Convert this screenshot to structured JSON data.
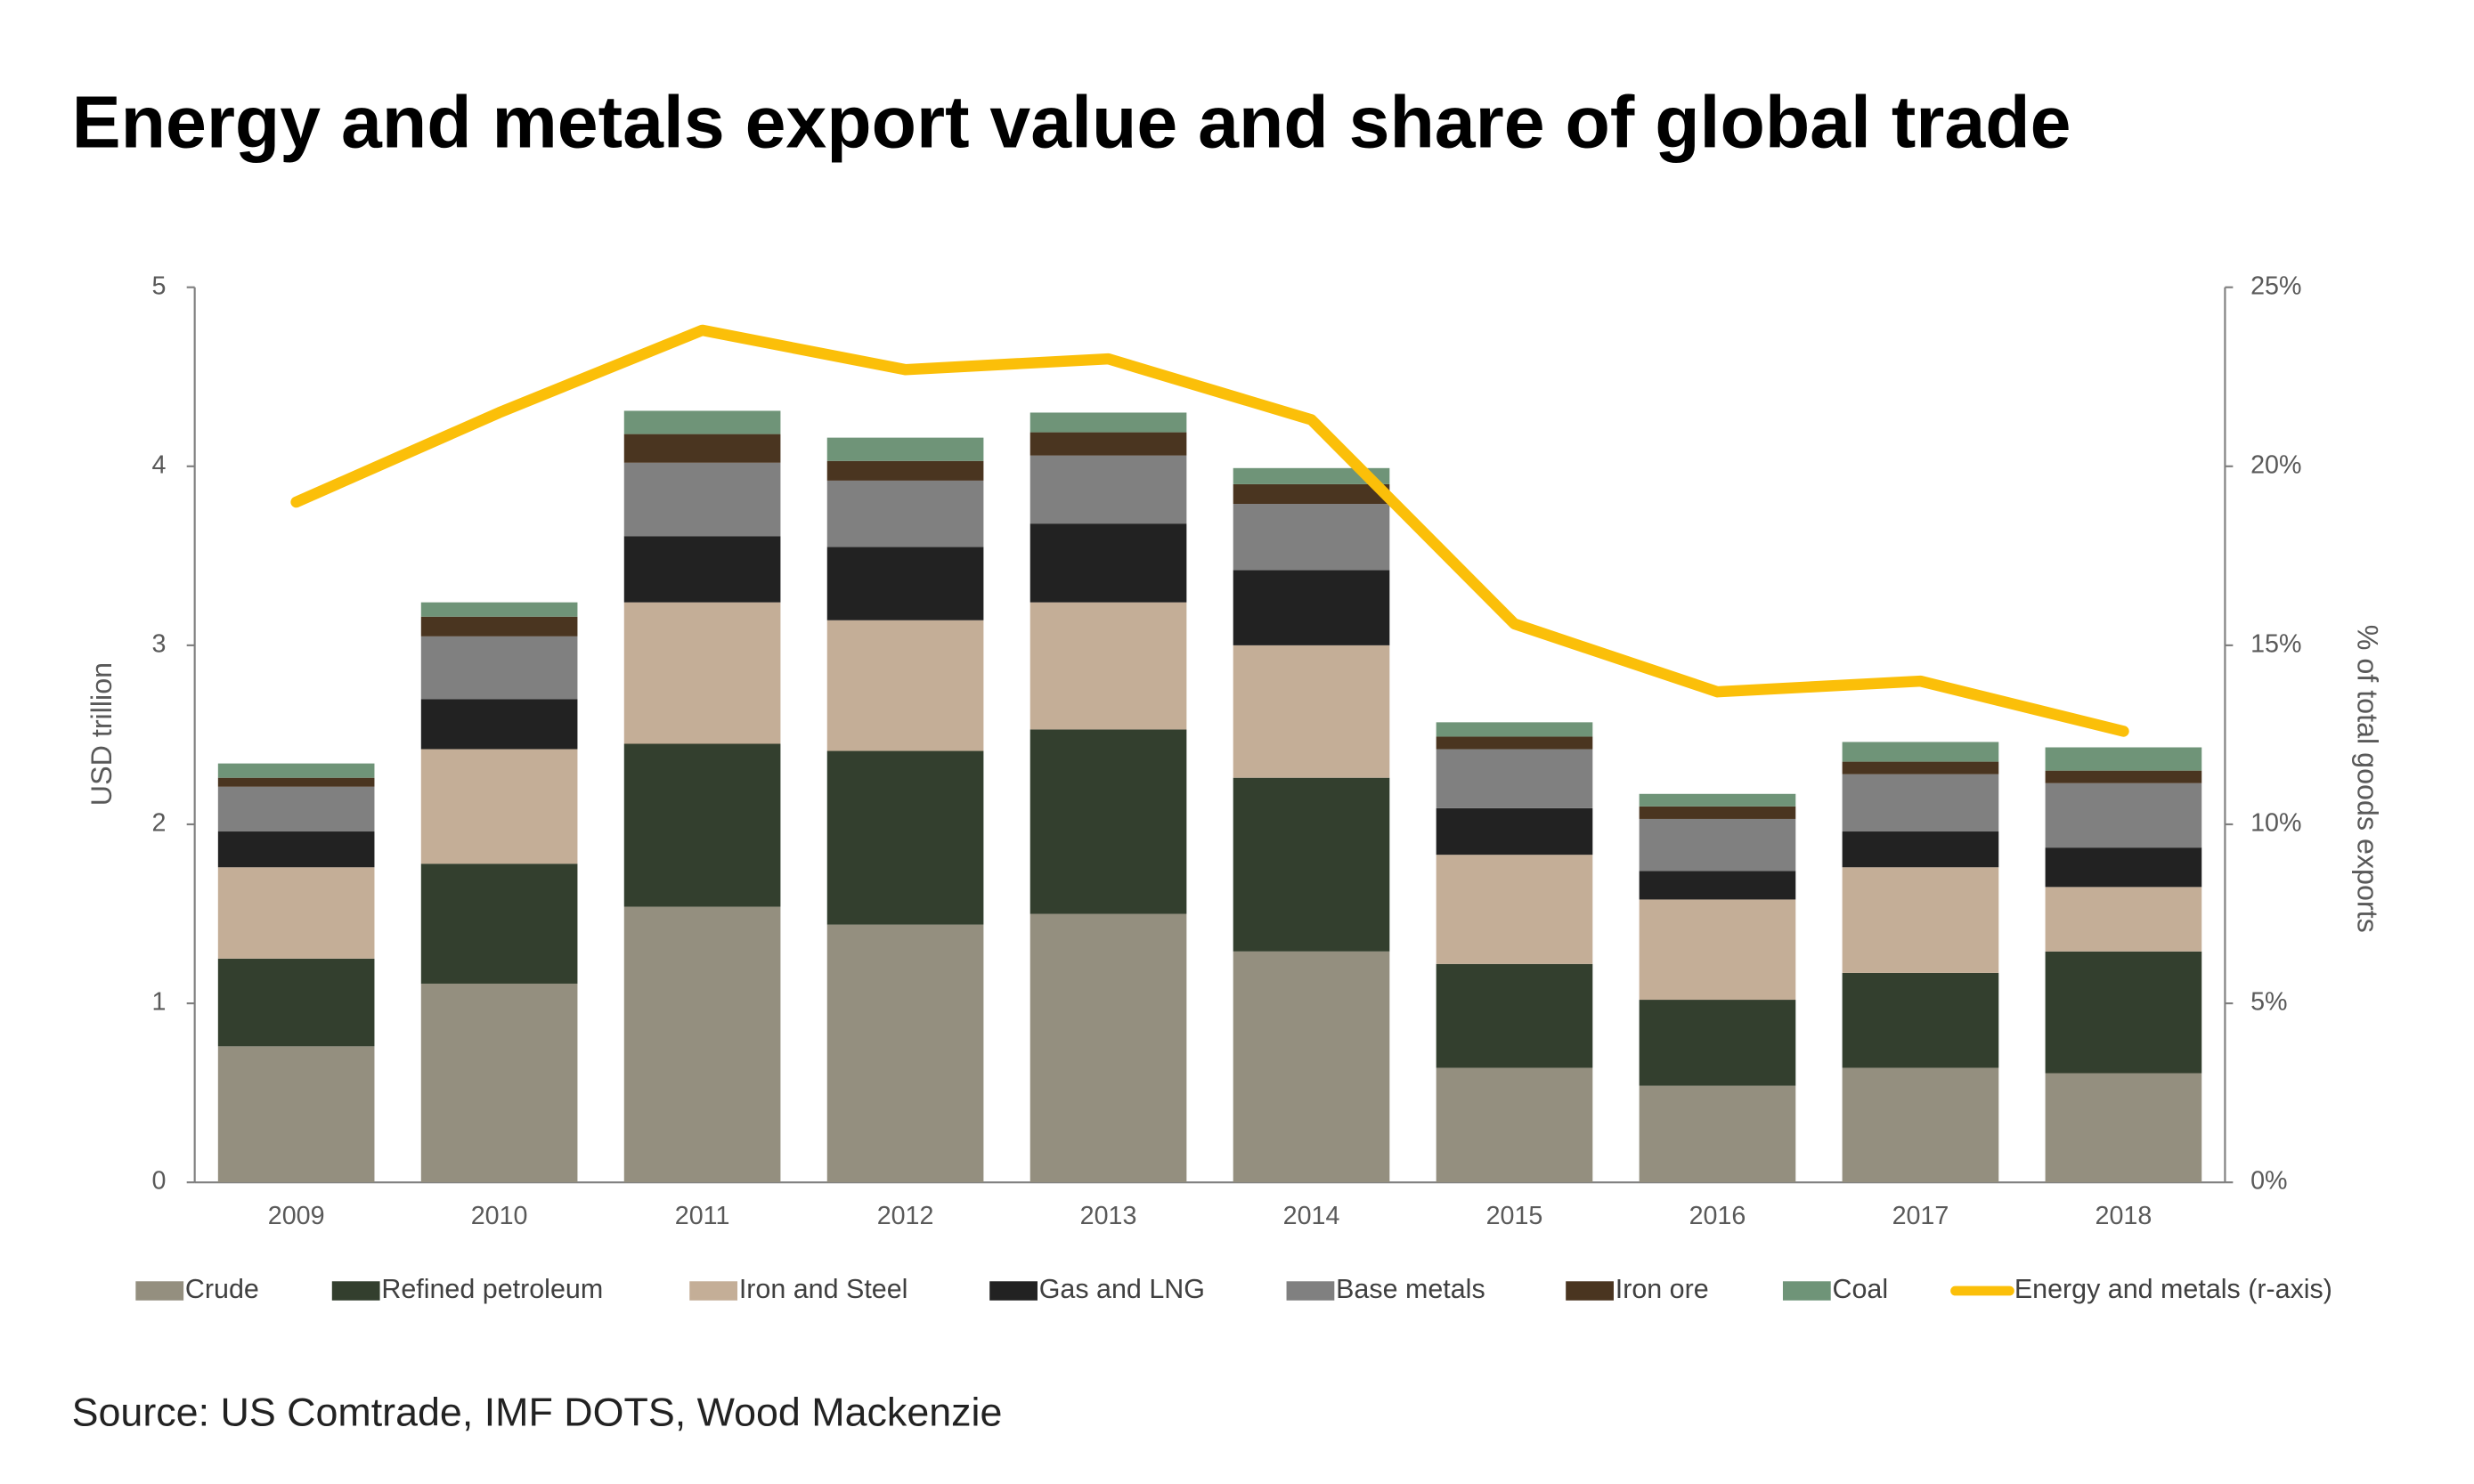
{
  "chart_data": {
    "type": "bar",
    "stacked": true,
    "title": "Energy and metals export value and share of global trade",
    "source": "Source: US Comtrade, IMF DOTS, Wood Mackenzie",
    "y_label": "USD trillion",
    "y2_label": "% of total goods exports",
    "categories": [
      "2009",
      "2010",
      "2011",
      "2012",
      "2013",
      "2014",
      "2015",
      "2016",
      "2017",
      "2018"
    ],
    "ylim": [
      0,
      5
    ],
    "yticks": [
      0,
      1,
      2,
      3,
      4,
      5
    ],
    "y2lim": [
      0,
      25
    ],
    "y2ticks": [
      {
        "value": 0,
        "label": "0%"
      },
      {
        "value": 5,
        "label": "5%"
      },
      {
        "value": 10,
        "label": "10%"
      },
      {
        "value": 15,
        "label": "15%"
      },
      {
        "value": 20,
        "label": "20%"
      },
      {
        "value": 25,
        "label": "25%"
      }
    ],
    "legend": "bottom",
    "series": [
      {
        "name": "Crude",
        "color": "#948f7f",
        "values": [
          0.76,
          1.11,
          1.54,
          1.44,
          1.5,
          1.29,
          0.64,
          0.54,
          0.64,
          0.61
        ]
      },
      {
        "name": "Refined petroleum",
        "color": "#333f2e",
        "values": [
          0.49,
          0.67,
          0.91,
          0.97,
          1.03,
          0.97,
          0.58,
          0.48,
          0.53,
          0.68
        ]
      },
      {
        "name": "Iron and Steel",
        "color": "#c4ae97",
        "values": [
          0.51,
          0.64,
          0.79,
          0.73,
          0.71,
          0.74,
          0.61,
          0.56,
          0.59,
          0.36
        ]
      },
      {
        "name": "Gas and LNG",
        "color": "#222222",
        "values": [
          0.2,
          0.28,
          0.37,
          0.41,
          0.44,
          0.42,
          0.26,
          0.16,
          0.2,
          0.22
        ]
      },
      {
        "name": "Base metals",
        "color": "#808080",
        "values": [
          0.25,
          0.35,
          0.41,
          0.37,
          0.38,
          0.37,
          0.33,
          0.29,
          0.32,
          0.36
        ]
      },
      {
        "name": "Iron ore",
        "color": "#4a3520",
        "values": [
          0.05,
          0.11,
          0.16,
          0.11,
          0.13,
          0.11,
          0.07,
          0.07,
          0.07,
          0.07
        ]
      },
      {
        "name": "Coal",
        "color": "#6f9478",
        "values": [
          0.08,
          0.08,
          0.13,
          0.13,
          0.11,
          0.09,
          0.08,
          0.07,
          0.11,
          0.13
        ]
      },
      {
        "name": "Energy and metals (r-axis)",
        "color": "#fbbf09",
        "type": "line",
        "axis": "y2",
        "values": [
          19.0,
          21.5,
          23.8,
          22.7,
          23.0,
          21.3,
          15.6,
          13.7,
          14.0,
          12.6
        ]
      }
    ]
  }
}
